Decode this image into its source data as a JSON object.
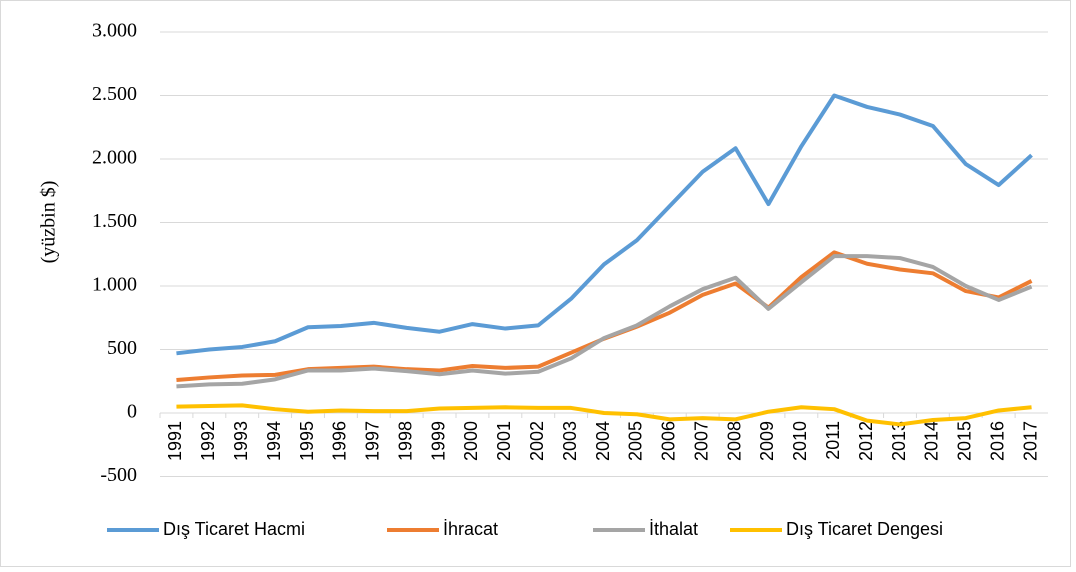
{
  "chart_data": {
    "type": "line",
    "y_label": "(yüzbin $)",
    "categories": [
      "1991",
      "1992",
      "1993",
      "1994",
      "1995",
      "1996",
      "1997",
      "1998",
      "1999",
      "2000",
      "2001",
      "2002",
      "2003",
      "2004",
      "2005",
      "2006",
      "2007",
      "2008",
      "2009",
      "2010",
      "2011",
      "2012",
      "2013",
      "2014",
      "2015",
      "2016",
      "2017"
    ],
    "series": [
      {
        "name": "Dış Ticaret Hacmi",
        "color": "#5b9bd5",
        "values": [
          470,
          500,
          520,
          565,
          675,
          685,
          710,
          670,
          640,
          700,
          665,
          690,
          900,
          1170,
          1360,
          1630,
          1900,
          2085,
          1645,
          2100,
          2500,
          2410,
          2350,
          2260,
          1960,
          1795,
          2030
        ]
      },
      {
        "name": "İhracat",
        "color": "#ed7d31",
        "values": [
          260,
          280,
          295,
          300,
          345,
          355,
          365,
          345,
          335,
          370,
          355,
          365,
          475,
          585,
          680,
          790,
          930,
          1020,
          830,
          1070,
          1265,
          1175,
          1130,
          1100,
          960,
          910,
          1040
        ]
      },
      {
        "name": "İthalat",
        "color": "#a5a5a5",
        "values": [
          210,
          225,
          230,
          265,
          335,
          335,
          350,
          330,
          305,
          335,
          310,
          325,
          430,
          590,
          690,
          840,
          975,
          1065,
          820,
          1030,
          1235,
          1235,
          1220,
          1150,
          1000,
          890,
          995
        ]
      },
      {
        "name": "Dış Ticaret Dengesi",
        "color": "#ffc000",
        "values": [
          50,
          55,
          60,
          30,
          10,
          20,
          15,
          15,
          35,
          40,
          45,
          40,
          40,
          0,
          -10,
          -50,
          -40,
          -50,
          10,
          45,
          30,
          -60,
          -90,
          -55,
          -40,
          20,
          45
        ]
      }
    ],
    "ylim": [
      -500,
      3000
    ],
    "yticks": [
      -500,
      0,
      500,
      {
        "value": 1000,
        "label": "1.000"
      },
      {
        "value": 1500,
        "label": "1.500"
      },
      {
        "value": 2000,
        "label": "2.000"
      },
      {
        "value": 2500,
        "label": "2.500"
      },
      {
        "value": 3000,
        "label": "3.000"
      }
    ],
    "grid": true,
    "legend": "bottom"
  }
}
